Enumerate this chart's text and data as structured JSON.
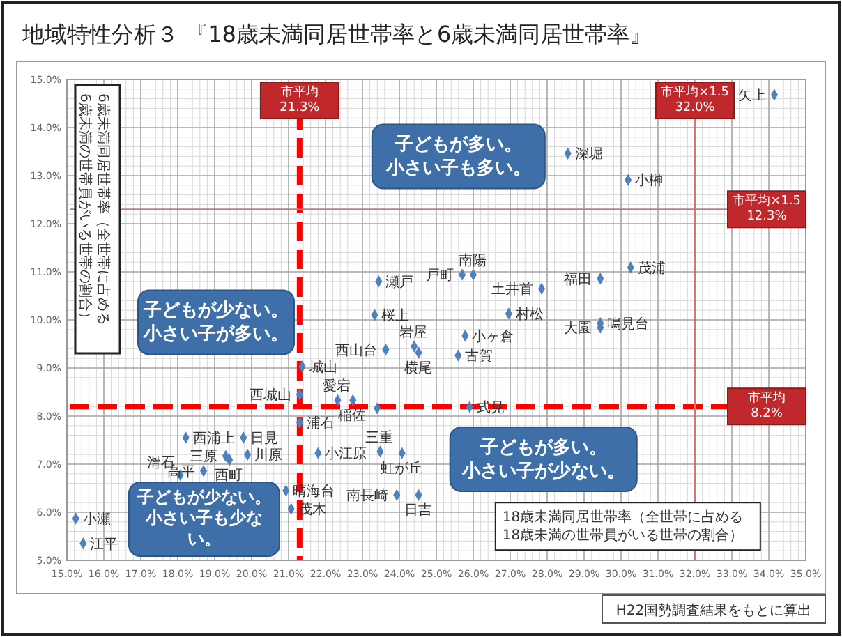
{
  "chart_data": {
    "type": "scatter",
    "title": "地域特性分析３ 『18歳未満同居世帯率と6歳未満同居世帯率』",
    "xlabel": "18歳未満同居世帯率（全世帯に占める18歳未満の世帯員がいる世帯の割合）",
    "ylabel": "6歳未満同居世帯率（全世帯に占める6歳未満の世帯員がいる世帯の割合）",
    "xlim": [
      15,
      35
    ],
    "ylim": [
      5,
      15
    ],
    "xticks": [
      {
        "value": 15,
        "label": "15.0%"
      },
      {
        "value": 16,
        "label": "16.0%"
      },
      {
        "value": 17,
        "label": "17.0%"
      },
      {
        "value": 18,
        "label": "18.0%"
      },
      {
        "value": 19,
        "label": "19.0%"
      },
      {
        "value": 20,
        "label": "20.0%"
      },
      {
        "value": 21,
        "label": "21.0%"
      },
      {
        "value": 22,
        "label": "22.0%"
      },
      {
        "value": 23,
        "label": "23.0%"
      },
      {
        "value": 24,
        "label": "24.0%"
      },
      {
        "value": 25,
        "label": "25.0%"
      },
      {
        "value": 26,
        "label": "26.0%"
      },
      {
        "value": 27,
        "label": "27.0%"
      },
      {
        "value": 28,
        "label": "28.0%"
      },
      {
        "value": 29,
        "label": "29.0%"
      },
      {
        "value": 30,
        "label": "30.0%"
      },
      {
        "value": 31,
        "label": "31.0%"
      },
      {
        "value": 32,
        "label": "32.0%"
      },
      {
        "value": 33,
        "label": "33.0%"
      },
      {
        "value": 34,
        "label": "34.0%"
      },
      {
        "value": 35,
        "label": "35.0%"
      }
    ],
    "yticks": [
      {
        "value": 5,
        "label": "5.0%"
      },
      {
        "value": 6,
        "label": "6.0%"
      },
      {
        "value": 7,
        "label": "7.0%"
      },
      {
        "value": 8,
        "label": "8.0%"
      },
      {
        "value": 9,
        "label": "9.0%"
      },
      {
        "value": 10,
        "label": "10.0%"
      },
      {
        "value": 11,
        "label": "11.0%"
      },
      {
        "value": 12,
        "label": "12.0%"
      },
      {
        "value": 13,
        "label": "13.0%"
      },
      {
        "value": 14,
        "label": "14.0%"
      },
      {
        "value": 15,
        "label": "15.0%"
      }
    ],
    "grid": true,
    "marker": "diamond",
    "series": [
      {
        "color": "#4f81bd",
        "x": [
          34.15,
          28.56,
          30.19,
          30.26,
          29.44,
          27.85,
          25.7,
          26.0,
          26.96,
          29.44,
          29.44,
          25.78,
          23.44,
          23.33,
          23.63,
          24.4,
          24.52,
          25.59,
          21.37,
          21.3,
          22.33,
          22.74,
          23.4,
          25.9,
          21.3,
          18.22,
          19.78,
          19.3,
          19.89,
          19.4,
          21.8,
          23.48,
          24.07,
          23.93,
          24.52,
          20.93,
          21.07,
          18.07,
          18.7,
          15.24,
          15.44
        ],
        "values": [
          14.68,
          13.46,
          12.91,
          11.09,
          10.86,
          10.65,
          10.94,
          10.94,
          10.13,
          9.93,
          9.84,
          9.67,
          10.8,
          10.1,
          9.38,
          9.45,
          9.32,
          9.26,
          9.03,
          8.45,
          8.33,
          8.33,
          8.16,
          8.19,
          7.87,
          7.55,
          7.55,
          7.17,
          7.2,
          7.09,
          7.23,
          7.26,
          7.23,
          6.36,
          6.36,
          6.45,
          6.07,
          6.77,
          6.86,
          5.87,
          5.35
        ]
      }
    ],
    "ref_lines": [
      {
        "axis": "x",
        "value": 21.3,
        "label": "市平均\n21.3%",
        "color": "#ff0000",
        "line_style": "dashed"
      },
      {
        "axis": "y",
        "value": 8.2,
        "label": "市平均\n8.2%",
        "color": "#ff0000",
        "line_style": "dashed"
      },
      {
        "axis": "x",
        "value": 32.0,
        "label": "市平均×1.5\n32.0%",
        "color": "#e07070",
        "line_style": "solid"
      },
      {
        "axis": "y",
        "value": 12.3,
        "label": "市平均×1.5\n12.3%",
        "color": "#e07070",
        "line_style": "solid"
      }
    ],
    "annotations": [
      "子どもが少ない。小さい子が多い。",
      "子どもが多い。小さい子も多い。",
      "子どもが少ない。小さい子も少ない。",
      "子どもが多い。小さい子が少ない。",
      "H22国勢調査結果をもとに算出",
      {
        "text": "矢上",
        "x": 34.15,
        "y": 14.68
      },
      {
        "text": "深堀",
        "x": 28.56,
        "y": 13.46
      },
      {
        "text": "小榊",
        "x": 30.19,
        "y": 12.91
      },
      {
        "text": "茂浦",
        "x": 30.26,
        "y": 11.09
      },
      {
        "text": "福田",
        "x": 29.44,
        "y": 10.86
      },
      {
        "text": "土井首",
        "x": 27.85,
        "y": 10.65
      },
      {
        "text": "戸町",
        "x": 25.7,
        "y": 10.94
      },
      {
        "text": "南陽",
        "x": 26.0,
        "y": 10.94
      },
      {
        "text": "村松",
        "x": 26.96,
        "y": 10.13
      },
      {
        "text": "鳴見台",
        "x": 29.44,
        "y": 9.93
      },
      {
        "text": "大園",
        "x": 29.44,
        "y": 9.84
      },
      {
        "text": "小ヶ倉",
        "x": 25.78,
        "y": 9.67
      },
      {
        "text": "瀬戸",
        "x": 23.44,
        "y": 10.8
      },
      {
        "text": "桜上",
        "x": 23.33,
        "y": 10.1
      },
      {
        "text": "西山台",
        "x": 23.63,
        "y": 9.38
      },
      {
        "text": "岩屋",
        "x": 24.4,
        "y": 9.45
      },
      {
        "text": "横尾",
        "x": 24.52,
        "y": 9.32
      },
      {
        "text": "古賀",
        "x": 25.59,
        "y": 9.26
      },
      {
        "text": "城山",
        "x": 21.37,
        "y": 9.03
      },
      {
        "text": "西城山",
        "x": 21.3,
        "y": 8.45
      },
      {
        "text": "愛宕",
        "x": 22.33,
        "y": 8.33
      },
      {
        "text": "稲佐",
        "x": 22.74,
        "y": 8.33
      },
      {
        "text": "式見",
        "x": 25.9,
        "y": 8.19
      },
      {
        "text": "浦石",
        "x": 21.3,
        "y": 7.87
      },
      {
        "text": "西浦上",
        "x": 18.22,
        "y": 7.55
      },
      {
        "text": "日見",
        "x": 19.78,
        "y": 7.55
      },
      {
        "text": "三原",
        "x": 19.3,
        "y": 7.17
      },
      {
        "text": "川原",
        "x": 19.89,
        "y": 7.2
      },
      {
        "text": "西町",
        "x": 19.4,
        "y": 7.09
      },
      {
        "text": "小江原",
        "x": 21.8,
        "y": 7.23
      },
      {
        "text": "三重",
        "x": 23.48,
        "y": 7.26
      },
      {
        "text": "虹が丘",
        "x": 24.07,
        "y": 7.23
      },
      {
        "text": "南長崎",
        "x": 23.93,
        "y": 6.36
      },
      {
        "text": "日吉",
        "x": 24.52,
        "y": 6.36
      },
      {
        "text": "晴海台",
        "x": 20.93,
        "y": 6.45
      },
      {
        "text": "茂木",
        "x": 21.07,
        "y": 6.07
      },
      {
        "text": "滑石",
        "x": 18.07,
        "y": 6.77
      },
      {
        "text": "高平",
        "x": 18.7,
        "y": 6.86
      },
      {
        "text": "小瀬",
        "x": 15.24,
        "y": 5.87
      },
      {
        "text": "江平",
        "x": 15.44,
        "y": 5.35
      }
    ]
  }
}
